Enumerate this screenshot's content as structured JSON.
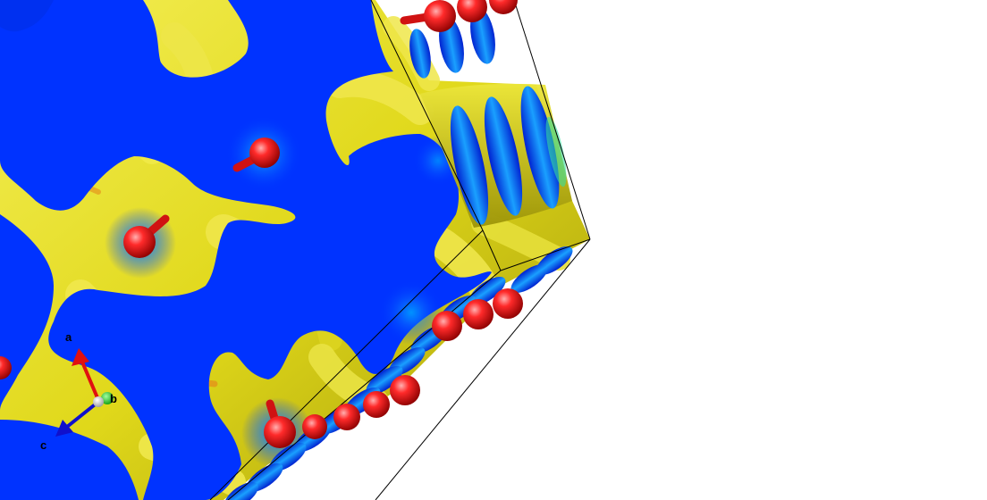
{
  "scene": {
    "colors": {
      "background": "#ffffff",
      "isosurface_primary": "#0033ff",
      "isosurface_secondary": "#e6e01a",
      "atom": "#e01010",
      "bond": "#e01010",
      "cell_edge": "#000000"
    }
  },
  "axes": {
    "a_label": "a",
    "b_label": "b",
    "c_label": "c",
    "a_color": "#e01010",
    "b_color": "#11cc11",
    "c_color": "#1010cc"
  }
}
